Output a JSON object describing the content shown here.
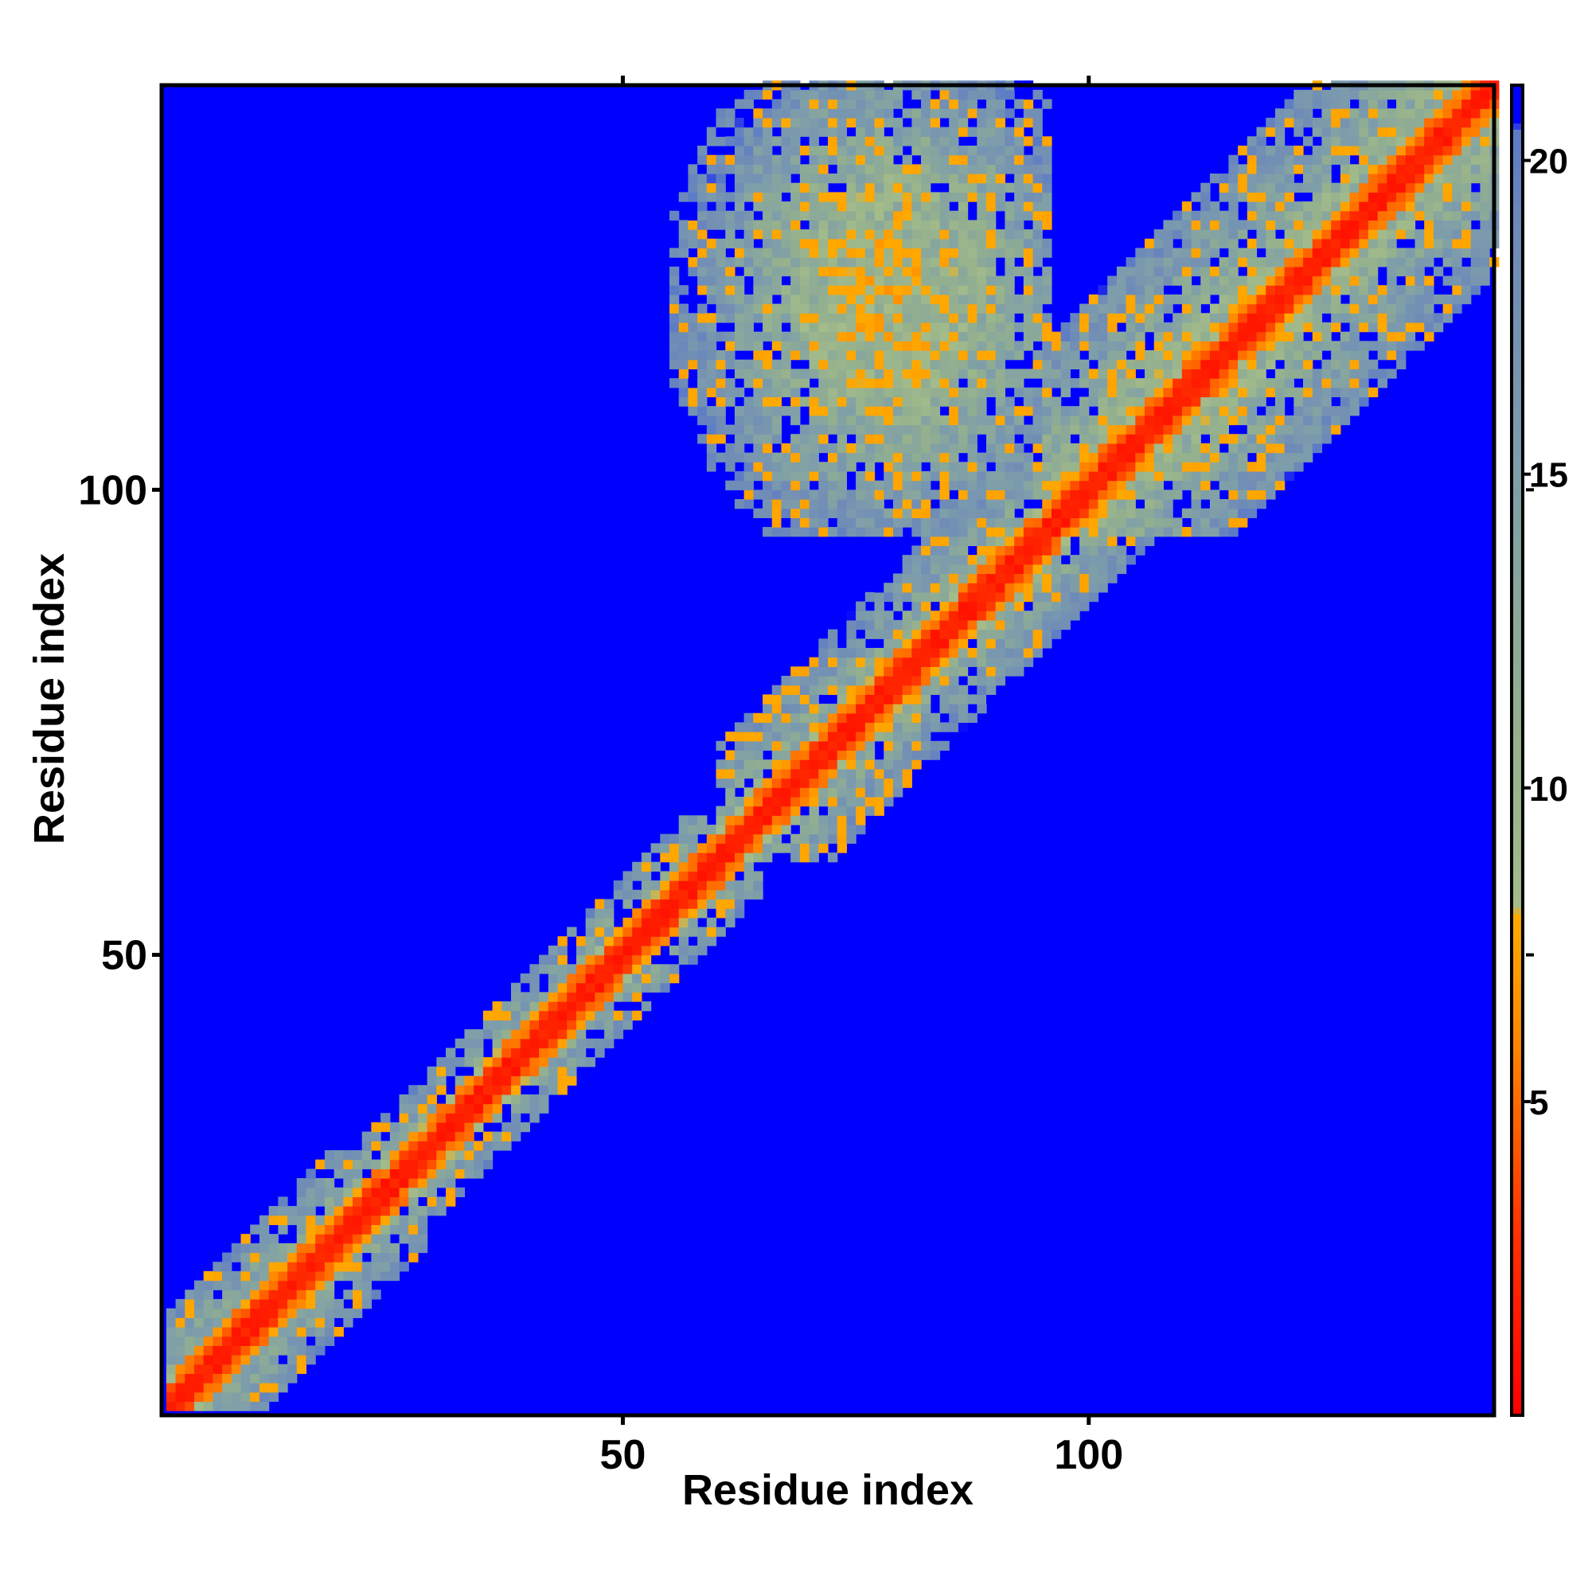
{
  "chart_data": {
    "type": "heatmap",
    "title": "",
    "xlabel": "Residue index",
    "ylabel": "Residue index",
    "n_residues": 143,
    "xlim": [
      1,
      143
    ],
    "ylim": [
      1,
      143
    ],
    "x_ticks": [
      {
        "value": 50,
        "label": "50"
      },
      {
        "value": 100,
        "label": "100"
      }
    ],
    "y_ticks": [
      {
        "value": 50,
        "label": "50"
      },
      {
        "value": 100,
        "label": "100"
      }
    ],
    "colorbar": {
      "range": [
        0,
        21.2
      ],
      "ticks": [
        {
          "value": 5,
          "label": "5"
        },
        {
          "value": 10,
          "label": "10"
        },
        {
          "value": 15,
          "label": "15"
        },
        {
          "value": 20,
          "label": "20"
        }
      ],
      "stops": [
        {
          "value": 0,
          "color": "#ff0000"
        },
        {
          "value": 3,
          "color": "#ff3300"
        },
        {
          "value": 6,
          "color": "#ff8800"
        },
        {
          "value": 8,
          "color": "#ffaa00"
        },
        {
          "value": 8.1,
          "color": "#a4bc8a"
        },
        {
          "value": 11,
          "color": "#94b08e"
        },
        {
          "value": 15,
          "color": "#7e9eaa"
        },
        {
          "value": 19,
          "color": "#6e8ab8"
        },
        {
          "value": 20.5,
          "color": "#5a7ac8"
        },
        {
          "value": 20.6,
          "color": "#0000ff"
        }
      ]
    },
    "background_color": "#0000ff",
    "regions": [
      {
        "name": "diagonal-band",
        "x_range": [
          1,
          143
        ],
        "y_range": [
          1,
          143
        ],
        "description_value": 0
      },
      {
        "name": "n-terminal-contacts",
        "x_range": [
          1,
          28
        ],
        "y_range": [
          1,
          28
        ]
      },
      {
        "name": "middle-contacts",
        "x_range": [
          28,
          62
        ],
        "y_range": [
          28,
          62
        ]
      },
      {
        "name": "upper-left-domain",
        "x_range": [
          55,
          95
        ],
        "y_range": [
          95,
          143
        ]
      },
      {
        "name": "lower-right-domain",
        "x_range": [
          88,
          143
        ],
        "y_range": [
          55,
          95
        ]
      },
      {
        "name": "c-terminal-contacts",
        "x_range": [
          95,
          143
        ],
        "y_range": [
          95,
          143
        ]
      }
    ]
  }
}
